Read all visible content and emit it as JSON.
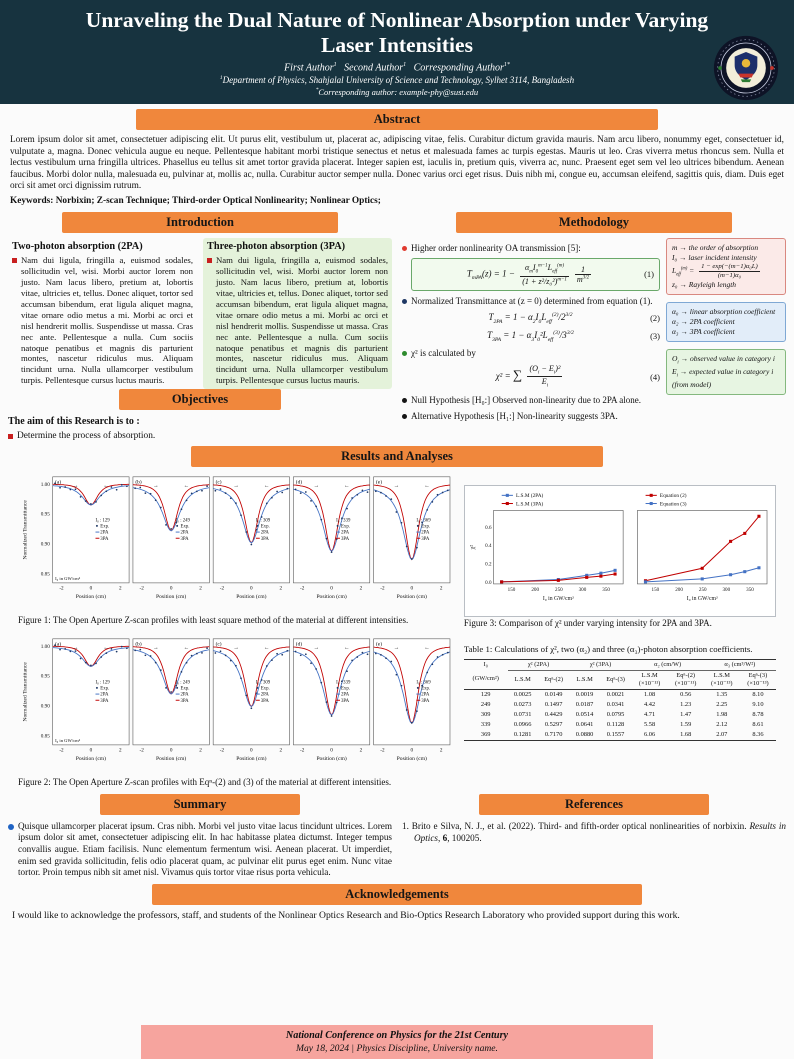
{
  "header": {
    "title": "Unraveling the Dual Nature of Nonlinear Absorption under Varying Laser Intensities",
    "authors": "First Author<sup>1</sup> &nbsp; Second Author<sup>1</sup> &nbsp; Corresponding Author<sup>1*</sup>",
    "affiliation": "<sup>1</sup>Department of Physics, Shahjalal University of Science and Technology, Sylhet 3114, Bangladesh",
    "email": "<sup>*</sup>Corresponding author: example-phy@sust.edu"
  },
  "abstract": {
    "heading": "Abstract",
    "body": "Lorem ipsum dolor sit amet, consectetuer adipiscing elit. Ut purus elit, vestibulum ut, placerat ac, adipiscing vitae, felis. Curabitur dictum gravida mauris. Nam arcu libero, nonummy eget, consectetuer id, vulputate a, magna. Donec vehicula augue eu neque. Pellentesque habitant morbi tristique senectus et netus et malesuada fames ac turpis egestas. Mauris ut leo. Cras viverra metus rhoncus sem. Nulla et lectus vestibulum urna fringilla ultrices. Phasellus eu tellus sit amet tortor gravida placerat. Integer sapien est, iaculis in, pretium quis, viverra ac, nunc. Praesent eget sem vel leo ultrices bibendum. Aenean faucibus. Morbi dolor nulla, malesuada eu, pulvinar at, mollis ac, nulla. Curabitur auctor semper nulla. Donec varius orci eget risus. Duis nibh mi, congue eu, accumsan eleifend, sagittis quis, diam. Duis eget orci sit amet orci dignissim rutrum.",
    "keywords": "Keywords: Norbixin; Z-scan Technique; Third-order Optical Nonlinearity; Nonlinear Optics;"
  },
  "introduction": {
    "heading": "Introduction",
    "col2pa": {
      "title": "Two-photon absorption (2PA)",
      "body": "Nam dui ligula, fringilla a, euismod sodales, sollicitudin vel, wisi. Morbi auctor lorem non justo. Nam lacus libero, pretium at, lobortis vitae, ultricies et, tellus. Donec aliquet, tortor sed accumsan bibendum, erat ligula aliquet magna, vitae ornare odio metus a mi. Morbi ac orci et nisl hendrerit mollis. Suspendisse ut massa. Cras nec ante. Pellentesque a nulla. Cum sociis natoque penatibus et magnis dis parturient montes, nascetur ridiculus mus. Aliquam tincidunt urna. Nulla ullamcorper vestibulum turpis. Pellentesque cursus luctus mauris."
    },
    "col3pa": {
      "title": "Three-photon absorption (3PA)",
      "body": "Nam dui ligula, fringilla a, euismod sodales, sollicitudin vel, wisi. Morbi auctor lorem non justo. Nam lacus libero, pretium at, lobortis vitae, ultricies et, tellus. Donec aliquet, tortor sed accumsan bibendum, erat ligula aliquet magna, vitae ornare odio metus a mi. Morbi ac orci et nisl hendrerit mollis. Suspendisse ut massa. Cras nec ante. Pellentesque a nulla. Cum sociis natoque penatibus et magnis dis parturient montes, nascetur ridiculus mus. Aliquam tincidunt urna. Nulla ullamcorper vestibulum turpis. Pellentesque cursus luctus mauris."
    }
  },
  "objectives": {
    "heading": "Objectives",
    "intro": "The aim of this Research is to :",
    "item": "Determine the process of absorption."
  },
  "methodology": {
    "heading": "Methodology",
    "bullet1": "Higher order nonlinearity OA transmission [5]:",
    "eq1": "T<sub>mPA</sub>(z) = 1 − <span class='frac'><span class='nu'>α<sub>m</sub>I<sub>0</sub><sup>m−1</sup>L<sub>eff</sub><sup>(m)</sup></span><span class='de'>(1 + z²/z₀²)<sup>m−1</sup></span></span><span class='frac'><span class='nu'>1</span><span class='de'>m<sup>3/2</sup></span></span>",
    "eq1_no": "(1)",
    "bullet2": "Normalized Transmittance at (z = 0) determined from equation (1).",
    "eq2": "T<sub>2PA</sub> = 1 − α<sub>2</sub>I<sub>0</sub>L<sub>eff</sub><sup>(2)</sup>/2<sup>3/2</sup>",
    "eq2_no": "(2)",
    "eq3": "T<sub>3PA</sub> = 1 − α<sub>3</sub>I<sub>0</sub>²L<sub>eff</sub><sup>(3)</sup>/3<sup>3/2</sup>",
    "eq3_no": "(3)",
    "bullet3": "χ² is calculated by",
    "eq4": "χ² = <span class='sum'>∑</span> <span class='frac'><span class='nu'>(O<sub>i</sub> − E<sub>i</sub>)²</span><span class='de'>E<sub>i</sub></span></span>",
    "eq4_no": "(4)",
    "bullet4": "Null Hypothesis [H₀:] Observed non-linearity due to 2PA alone.",
    "bullet5": "Alternative Hypothesis [H₁:] Non-linearity suggests 3PA.",
    "pink_box": {
      "l1": "m → the order of absorption",
      "l2": "I₀ → laser incident intensity",
      "l3": "L<sub>eff</sub><sup>(m)</sup> = <span class='frac'><span class='nu'>1 − exp(−(m−1)α₀L)</span><span class='de'>(m−1)α₀</span></span>",
      "l4": "z₀ → Rayleigh length"
    },
    "blue_box": {
      "l1": "α₀ → linear absorption coefficient",
      "l2": "α₂ → 2PA coefficient",
      "l3": "α₃ → 3PA coefficient"
    },
    "green_box": {
      "l1": "O<sub>i</sub> → observed value in category <i>i</i>",
      "l2": "E<sub>i</sub> → expected value in category <i>i</i> (from model)"
    }
  },
  "results": {
    "heading": "Results and Analyses",
    "fig1_caption": "Figure 1: The Open Aperture Z-scan profiles with least square method of the material at different intensities.",
    "fig2_caption": "Figure 2: The Open Aperture Z-scan profiles with Eqⁿ-(2) and (3) of the material at different intensities.",
    "fig3_caption": "Figure 3: Comparison of χ² under varying intensity for 2PA and 3PA.",
    "table": {
      "caption": "Table 1: Calculations of χ², two (α₂) and three (α₃)-photon absorption coefficients.",
      "groups": [
        {
          "label": "I₀",
          "span": 1
        },
        {
          "label": "χ² (2PA)",
          "span": 2
        },
        {
          "label": "χ² (3PA)",
          "span": 2
        },
        {
          "label": "α₂ (cm/W)",
          "span": 2
        },
        {
          "label": "α₃ (cm³/W²)",
          "span": 2
        }
      ],
      "columns": [
        "(GW/cm²)",
        "L.S.M",
        "Eqⁿ-(2)",
        "L.S.M",
        "Eqⁿ-(3)",
        "L.S.M<br>(×10⁻¹¹)",
        "Eqⁿ-(2)<br>(×10⁻¹¹)",
        "L.S.M<br>(×10⁻¹³)",
        "Eqⁿ-(3)<br>(×10⁻¹³)"
      ],
      "rows": [
        [
          "129",
          "0.0025",
          "0.0149",
          "0.0019",
          "0.0021",
          "1.08",
          "0.56",
          "1.35",
          "8.10"
        ],
        [
          "249",
          "0.0273",
          "0.1497",
          "0.0187",
          "0.0341",
          "4.42",
          "1.23",
          "2.25",
          "9.10"
        ],
        [
          "309",
          "0.0731",
          "0.4429",
          "0.0514",
          "0.0795",
          "4.71",
          "1.47",
          "1.98",
          "8.78"
        ],
        [
          "339",
          "0.0966",
          "0.5297",
          "0.0641",
          "0.1128",
          "5.58",
          "1.59",
          "2.12",
          "8.61"
        ],
        [
          "369",
          "0.1281",
          "0.7170",
          "0.0880",
          "0.1557",
          "6.06",
          "1.68",
          "2.07",
          "8.36"
        ]
      ]
    }
  },
  "summary": {
    "heading": "Summary",
    "body": "Quisque ullamcorper placerat ipsum. Cras nibh. Morbi vel justo vitae lacus tincidunt ultrices. Lorem ipsum dolor sit amet, consectetuer adipiscing elit. In hac habitasse platea dictumst. Integer tempus convallis augue. Etiam facilisis. Nunc elementum fermentum wisi. Aenean placerat. Ut imperdiet, enim sed gravida sollicitudin, felis odio placerat quam, ac pulvinar elit purus eget enim. Nunc vitae tortor. Proin tempus nibh sit amet nisl. Vivamus quis tortor vitae risus porta vehicula."
  },
  "references": {
    "heading": "References",
    "item": "1. Brito e Silva, N. J., et al. (2022). Third- and fifth-order optical nonlinearities of norbixin. <i>Results in Optics</i>, <b>6</b>, 100205."
  },
  "acknowledgements": {
    "heading": "Acknowledgements",
    "body": "I would like to acknowledge the professors, staff, and students of the Nonlinear Optics Research and Bio-Optics Research Laboratory who provided support during this work."
  },
  "footer": {
    "line1": "National Conference on Physics for the 21st Century",
    "line2": "May 18, 2024  |  Physics Discipline, University name."
  },
  "colors": {
    "header_bg": "#17333f",
    "section_bar": "#f0873c",
    "footer_pink": "#f6a49e",
    "light_green": "#e4f2da",
    "exp_marker": "#1f3864",
    "pa2_line": "#4472c4",
    "pa3_line": "#c00000"
  },
  "chart_data": [
    {
      "id": "zscan1",
      "kind": "zscan",
      "type": "line",
      "title": "Open Aperture Z-scan profiles (least square method)",
      "xlabel": "Position (cm)",
      "ylabel": "Normalized Transmittance",
      "xlim": [
        -2.6,
        2.6
      ],
      "ylim": [
        0.835,
        1.012
      ],
      "xticks": [
        -2,
        0,
        2
      ],
      "yticks": [
        0.85,
        0.9,
        0.95,
        1.0
      ],
      "intensity_note": "I₀ in GW/cm²",
      "legend": [
        "Exp.",
        "2PA",
        "3PA"
      ],
      "colors": {
        "exp": "#1f3864",
        "pa2": "#4472c4",
        "pa3": "#c00000",
        "arrow": "#dd2222"
      },
      "subplots": [
        {
          "label": "(a)",
          "intensity": 129,
          "min_T": 0.965
        },
        {
          "label": "(b)",
          "intensity": 249,
          "min_T": 0.922
        },
        {
          "label": "(c)",
          "intensity": 309,
          "min_T": 0.902
        },
        {
          "label": "(d)",
          "intensity": 339,
          "min_T": 0.888
        },
        {
          "label": "(e)",
          "intensity": 369,
          "min_T": 0.874
        }
      ]
    },
    {
      "id": "zscan2",
      "kind": "zscan",
      "type": "line",
      "title": "Open Aperture Z-scan profiles with Eqⁿ-(2) and (3)",
      "xlabel": "Position (cm)",
      "ylabel": "Normalized Transmittance",
      "xlim": [
        -2.6,
        2.6
      ],
      "ylim": [
        0.835,
        1.012
      ],
      "xticks": [
        -2,
        0,
        2
      ],
      "yticks": [
        0.85,
        0.9,
        0.95,
        1.0
      ],
      "intensity_note": "I₀ in GW/cm²",
      "legend": [
        "Exp.",
        "2PA",
        "3PA"
      ],
      "colors": {
        "exp": "#1f3864",
        "pa2": "#4472c4",
        "pa3": "#c00000",
        "arrow": "#dd2222"
      },
      "subplots": [
        {
          "label": "(a)",
          "intensity": 129,
          "min_T": 0.966
        },
        {
          "label": "(b)",
          "intensity": 249,
          "min_T": 0.92
        },
        {
          "label": "(c)",
          "intensity": 309,
          "min_T": 0.899
        },
        {
          "label": "(d)",
          "intensity": 339,
          "min_T": 0.885
        },
        {
          "label": "(e)",
          "intensity": 369,
          "min_T": 0.871
        }
      ]
    },
    {
      "id": "chi2",
      "kind": "chi2",
      "type": "line",
      "title": "Comparison of χ² under varying intensity for 2PA and 3PA",
      "xlabel": "I₀ in GW/cm²",
      "ylabel": "χ²",
      "x": [
        129,
        249,
        309,
        339,
        369
      ],
      "xlim": [
        112,
        386
      ],
      "ylim": [
        -0.02,
        0.78
      ],
      "xticks": [
        150,
        200,
        250,
        300,
        350
      ],
      "yticks": [
        0.0,
        0.2,
        0.4,
        0.6
      ],
      "panels": [
        {
          "series": [
            {
              "name": "L.S.M (2PA)",
              "color": "#4472c4",
              "values": [
                0.0025,
                0.0273,
                0.0731,
                0.0966,
                0.1281
              ]
            },
            {
              "name": "L.S.M (3PA)",
              "color": "#c00000",
              "values": [
                0.0019,
                0.0187,
                0.0514,
                0.0641,
                0.088
              ]
            }
          ]
        },
        {
          "series": [
            {
              "name": "Equation (2)",
              "color": "#c00000",
              "values": [
                0.0149,
                0.1497,
                0.4429,
                0.5297,
                0.717
              ]
            },
            {
              "name": "Equation (3)",
              "color": "#4472c4",
              "values": [
                0.0021,
                0.0341,
                0.0795,
                0.1128,
                0.1557
              ]
            }
          ]
        }
      ]
    }
  ]
}
